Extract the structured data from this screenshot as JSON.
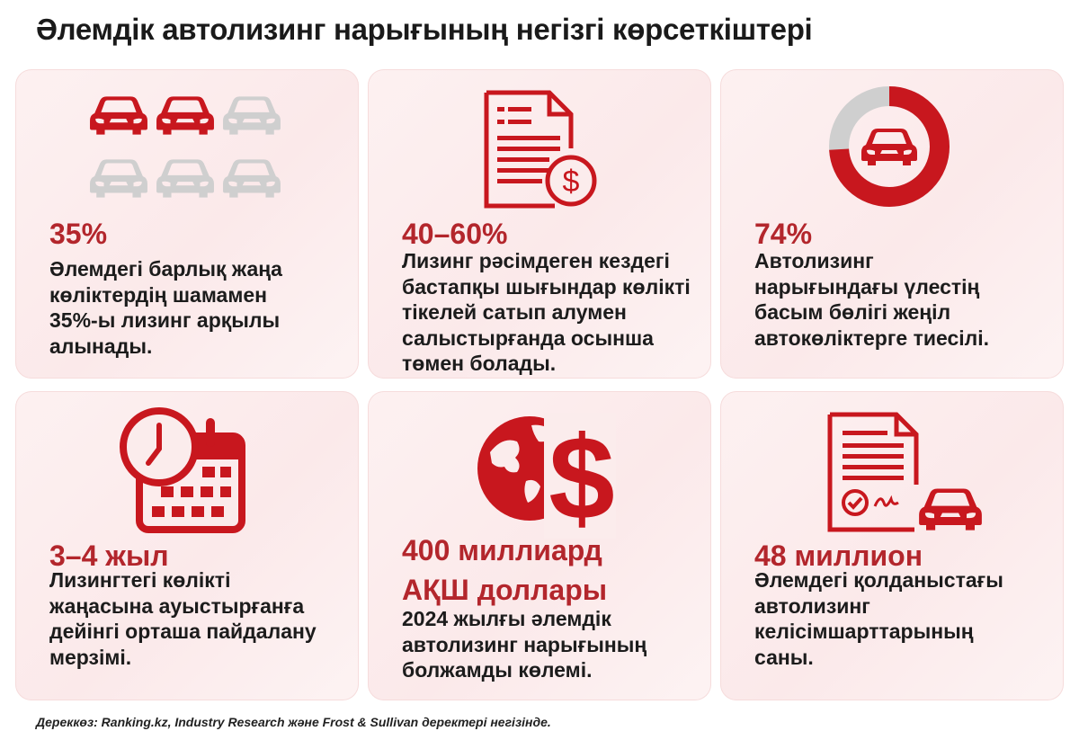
{
  "title": "Әлемдік автолизинг нарығының негізгі көрсеткіштері",
  "colors": {
    "accent": "#c8171e",
    "dark_red": "#b3262c",
    "grey": "#d0d0d0",
    "card_bg": "#fbecec"
  },
  "cards": [
    {
      "icon": "cars-grid-icon",
      "value": "35%",
      "desc_lines": [
        "Әлемдегі барлық жаңа",
        "көліктердің шамамен",
        "35%-ы лизинг арқылы",
        "алынады."
      ]
    },
    {
      "icon": "invoice-dollar-icon",
      "value": "40–60%",
      "desc_lines": [
        "Лизинг рәсімдеген кездегі",
        "бастапқы шығындар көлікті",
        "тікелей сатып алумен",
        "салыстырғанда осынша",
        "төмен болады."
      ]
    },
    {
      "icon": "donut-car-icon",
      "value": "74%",
      "share": 0.74,
      "desc_lines": [
        "Автолизинг",
        "нарығындағы үлестің",
        "басым бөлігі жеңіл",
        "автокөліктерге тиесілі."
      ]
    },
    {
      "icon": "calendar-clock-icon",
      "value": "3–4 жыл",
      "desc_lines": [
        "Лизингтегі көлікті",
        "жаңасына ауыстырғанға",
        "дейінгі орташа пайдалану",
        "мерзімі."
      ]
    },
    {
      "icon": "globe-dollar-icon",
      "value_lines": [
        "400 миллиард",
        "АҚШ доллары"
      ],
      "desc_lines": [
        "2024 жылғы әлемдік",
        "автолизинг нарығының",
        "болжамды көлемі."
      ]
    },
    {
      "icon": "contract-car-icon",
      "value": "48 миллион",
      "desc_lines": [
        "Әлемдегі қолданыстағы",
        "автолизинг",
        "келісімшарттарының",
        "саны."
      ]
    }
  ],
  "source": "Дереккөз: Ranking.kz, Industry Research және Frost & Sullivan деректері негізінде."
}
